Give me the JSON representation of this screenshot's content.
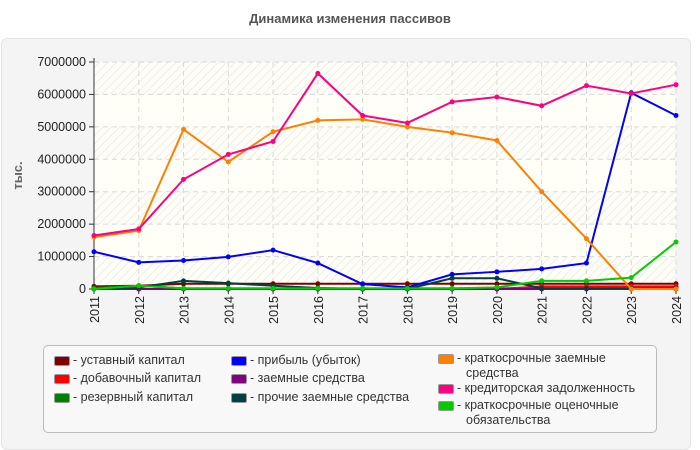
{
  "chart_data": {
    "type": "line",
    "title": "Динамика изменения пассивов",
    "ylabel": "тыс.",
    "xlabel": "",
    "ylim": [
      0,
      7000000
    ],
    "yticks": [
      "0",
      "1000000",
      "2000000",
      "3000000",
      "4000000",
      "5000000",
      "6000000",
      "7000000"
    ],
    "grid": true,
    "legend_placement": "bottom",
    "categories": [
      "2011",
      "2012",
      "2013",
      "2014",
      "2015",
      "2016",
      "2017",
      "2018",
      "2019",
      "2020",
      "2021",
      "2022",
      "2023",
      "2024"
    ],
    "series": [
      {
        "name": "уставный капитал",
        "color": "#800000",
        "values": [
          80000,
          100000,
          160000,
          160000,
          160000,
          160000,
          160000,
          160000,
          160000,
          160000,
          160000,
          160000,
          160000,
          160000
        ]
      },
      {
        "name": "добавочный капитал",
        "color": "#ff0000",
        "values": [
          0,
          0,
          0,
          0,
          0,
          0,
          0,
          0,
          0,
          0,
          80000,
          80000,
          80000,
          80000
        ]
      },
      {
        "name": "резервный капитал",
        "color": "#008000",
        "values": [
          30000,
          100000,
          20000,
          20000,
          20000,
          20000,
          20000,
          20000,
          20000,
          20000,
          20000,
          20000,
          20000,
          20000
        ]
      },
      {
        "name": "прибыль (убыток)",
        "color": "#0000ff",
        "values": [
          1150000,
          820000,
          880000,
          990000,
          1200000,
          800000,
          150000,
          50000,
          450000,
          530000,
          620000,
          800000,
          6050000,
          5350000
        ]
      },
      {
        "name": "заемные средства",
        "color": "#800080",
        "values": [
          0,
          0,
          0,
          0,
          0,
          0,
          0,
          0,
          0,
          0,
          0,
          0,
          0,
          0
        ]
      },
      {
        "name": "прочие заемные средства",
        "color": "#004040",
        "values": [
          0,
          50000,
          250000,
          180000,
          100000,
          30000,
          0,
          0,
          330000,
          330000,
          20000,
          20000,
          20000,
          20000
        ]
      },
      {
        "name": "краткосрочные заемные средства",
        "color": "#ff8000",
        "values": [
          1600000,
          1800000,
          4920000,
          3920000,
          4850000,
          5200000,
          5230000,
          5000000,
          4820000,
          4580000,
          3000000,
          1550000,
          0,
          0
        ]
      },
      {
        "name": "кредиторская задолженность",
        "color": "#ff0080",
        "values": [
          1650000,
          1850000,
          3380000,
          4150000,
          4550000,
          6650000,
          5350000,
          5120000,
          5770000,
          5920000,
          5650000,
          6270000,
          6030000,
          6300000
        ]
      },
      {
        "name": "краткосрочные оценочные обязательства",
        "color": "#00cc00",
        "values": [
          0,
          100000,
          20000,
          20000,
          20000,
          20000,
          20000,
          20000,
          20000,
          50000,
          250000,
          250000,
          350000,
          1450000
        ]
      }
    ]
  },
  "legend_lines": {
    "s0": [
      "- уставный капитал"
    ],
    "s1": [
      "- добавочный капитал"
    ],
    "s2": [
      "- резервный капитал"
    ],
    "s3": [
      "- прибыль (убыток)"
    ],
    "s4": [
      "- заемные средства"
    ],
    "s5": [
      "- прочие заемные средства"
    ],
    "s6": [
      "- краткосрочные заемные",
      "средства"
    ],
    "s7": [
      "- кредиторская задолженность"
    ],
    "s8": [
      "- краткосрочные оценочные",
      "обязательства"
    ]
  }
}
